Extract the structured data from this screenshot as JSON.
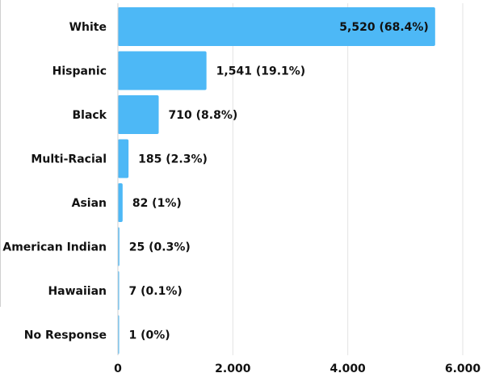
{
  "chart_data": {
    "type": "bar",
    "orientation": "horizontal",
    "title": "",
    "xlabel": "",
    "ylabel": "",
    "categories": [
      "White",
      "Hispanic",
      "Black",
      "Multi-Racial",
      "Asian",
      "American Indian",
      "Hawaiian",
      "No Response"
    ],
    "values": [
      5520,
      1541,
      710,
      185,
      82,
      25,
      7,
      1
    ],
    "value_labels": [
      "5,520 (68.4%)",
      "1,541 (19.1%)",
      "710 (8.8%)",
      "185 (2.3%)",
      "82 (1%)",
      "25 (0.3%)",
      "7 (0.1%)",
      "1 (0%)"
    ],
    "xlim": [
      0,
      6200
    ],
    "x_ticks": [
      0,
      2000,
      4000,
      6000
    ],
    "x_tick_labels": [
      "0",
      "2.000",
      "4.000",
      "6.000"
    ],
    "grid": true,
    "bar_color": "#4db8f6",
    "grid_color": "#e3e3e3"
  }
}
